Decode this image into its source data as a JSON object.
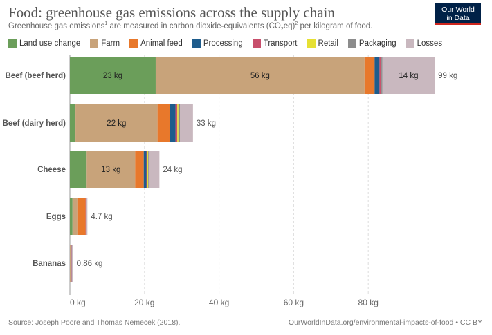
{
  "header": {
    "title": "Food: greenhouse gas emissions across the supply chain",
    "subtitle_pre": "Greenhouse gas emissions",
    "subtitle_sup1": "1",
    "subtitle_mid": " are measured in carbon dioxide-equivalents (CO",
    "subtitle_sub": "2",
    "subtitle_mid2": "eq)",
    "subtitle_sup2": "2",
    "subtitle_post": " per kilogram of food."
  },
  "logo": {
    "line1": "Our World",
    "line2": "in Data"
  },
  "footer": {
    "source": "Source: Joseph Poore and Thomas Nemecek (2018).",
    "url": "OurWorldInData.org/environmental-impacts-of-food • CC BY"
  },
  "chart_data": {
    "type": "bar",
    "orientation": "horizontal",
    "stacked": true,
    "categories": [
      "Beef (beef herd)",
      "Beef (dairy herd)",
      "Cheese",
      "Eggs",
      "Bananas"
    ],
    "series": [
      {
        "name": "Land use change",
        "color": "#6b9e5a",
        "values": [
          23.0,
          1.5,
          4.5,
          0.7,
          0.0
        ]
      },
      {
        "name": "Farm",
        "color": "#c8a37a",
        "values": [
          56.0,
          22.0,
          13.0,
          1.3,
          0.3
        ]
      },
      {
        "name": "Animal feed",
        "color": "#e8782b",
        "values": [
          2.7,
          3.4,
          2.3,
          2.2,
          0.0
        ]
      },
      {
        "name": "Processing",
        "color": "#1e5c8c",
        "values": [
          1.3,
          1.4,
          0.7,
          0.0,
          0.1
        ]
      },
      {
        "name": "Transport",
        "color": "#c84f6c",
        "values": [
          0.3,
          0.5,
          0.2,
          0.1,
          0.1
        ]
      },
      {
        "name": "Retail",
        "color": "#e6e033",
        "values": [
          0.2,
          0.3,
          0.3,
          0.0,
          0.0
        ]
      },
      {
        "name": "Packaging",
        "color": "#8c8c8c",
        "values": [
          0.3,
          0.4,
          0.2,
          0.1,
          0.1
        ]
      },
      {
        "name": "Losses",
        "color": "#c9b8bf",
        "values": [
          14.0,
          3.5,
          2.8,
          0.3,
          0.26
        ]
      }
    ],
    "totals": [
      99,
      33,
      24,
      4.7,
      0.86
    ],
    "total_labels": [
      "99 kg",
      "33 kg",
      "24 kg",
      "4.7 kg",
      "0.86 kg"
    ],
    "segment_labels": [
      {
        "category": "Beef (beef herd)",
        "series": "Land use change",
        "label": "23 kg"
      },
      {
        "category": "Beef (beef herd)",
        "series": "Farm",
        "label": "56 kg"
      },
      {
        "category": "Beef (beef herd)",
        "series": "Losses",
        "label": "14 kg"
      },
      {
        "category": "Beef (dairy herd)",
        "series": "Farm",
        "label": "22 kg"
      },
      {
        "category": "Cheese",
        "series": "Farm",
        "label": "13 kg"
      }
    ],
    "x_ticks": [
      0,
      20,
      40,
      60,
      80
    ],
    "x_tick_labels": [
      "0 kg",
      "20 kg",
      "40 kg",
      "60 kg",
      "80 kg"
    ],
    "xlim": [
      0,
      100
    ],
    "grid": "vertical-dashed",
    "legend_position": "top"
  }
}
